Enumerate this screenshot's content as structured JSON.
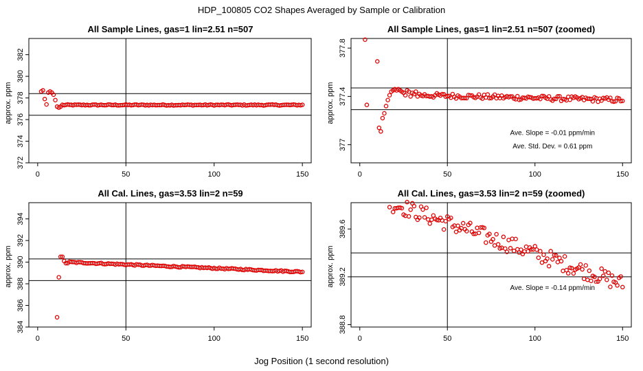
{
  "figure": {
    "title": "HDP_100805  CO2 Shapes Averaged by Sample or Calibration",
    "xlabel": "Jog Position (1 second resolution)"
  },
  "colors": {
    "points": "#e00000",
    "frame": "#000000",
    "background": "#ffffff"
  },
  "chart_data": [
    {
      "type": "scatter",
      "title": "All Sample Lines, gas=1 lin=2.51 n=507",
      "xlabel": "",
      "ylabel": "approx. ppm",
      "xlim": [
        -5,
        155
      ],
      "ylim": [
        372,
        383.5
      ],
      "xticks": [
        0,
        50,
        100,
        150
      ],
      "yticks": [
        372,
        374,
        376,
        378,
        380,
        382
      ],
      "vlines": [
        50
      ],
      "hlines": [
        376.4,
        378.4
      ],
      "annotations": [],
      "series": [
        {
          "name": "sample",
          "x": [
            2,
            3,
            4,
            5,
            6,
            7,
            8,
            9,
            10,
            11,
            12,
            13
          ],
          "y": [
            378.6,
            378.7,
            377.9,
            377.4,
            378.5,
            378.6,
            378.5,
            378.3,
            377.8,
            377.2,
            377.1,
            377.2
          ]
        },
        {
          "name": "sample_flat",
          "x_start": 14,
          "x_end": 150,
          "y_start": 377.35,
          "y_end": 377.35,
          "jitter": 0.05
        }
      ]
    },
    {
      "type": "scatter",
      "title": "All Sample Lines, gas=1 lin=2.51 n=507 (zoomed)",
      "xlabel": "",
      "ylabel": "approx. ppm",
      "xlim": [
        -5,
        155
      ],
      "ylim": [
        376.85,
        377.88
      ],
      "xticks": [
        0,
        50,
        100,
        150
      ],
      "yticks": [
        377.0,
        377.4,
        377.8
      ],
      "vlines": [
        50
      ],
      "hlines": [
        377.29,
        377.47
      ],
      "annotations": [
        {
          "text": "Ave. Slope =  -0.01  ppm/min",
          "x": 110,
          "y": 377.08
        },
        {
          "text": "Ave. Std. Dev. =  0.61  ppm",
          "x": 110,
          "y": 376.97
        }
      ],
      "series": [
        {
          "name": "sample",
          "x": [
            3,
            4,
            10,
            11,
            12,
            13,
            14,
            15,
            16,
            17,
            18,
            19,
            20,
            21,
            22,
            23,
            24,
            25,
            26,
            27,
            28,
            29,
            30,
            31,
            32,
            33,
            34
          ],
          "y": [
            377.87,
            377.33,
            377.69,
            377.14,
            377.11,
            377.22,
            377.26,
            377.32,
            377.37,
            377.41,
            377.44,
            377.45,
            377.46,
            377.45,
            377.46,
            377.45,
            377.44,
            377.43,
            377.41,
            377.45,
            377.44,
            377.4,
            377.43,
            377.42,
            377.44,
            377.4,
            377.42
          ]
        },
        {
          "name": "sample_flat",
          "x_start": 35,
          "x_end": 150,
          "y_start": 377.41,
          "y_end": 377.37,
          "jitter": 0.02
        }
      ]
    },
    {
      "type": "scatter",
      "title": "All Cal. Lines, gas=3.53 lin=2 n=59",
      "xlabel": "",
      "ylabel": "approx. ppm",
      "xlim": [
        -5,
        155
      ],
      "ylim": [
        384,
        395.5
      ],
      "xticks": [
        0,
        50,
        100,
        150
      ],
      "yticks": [
        384,
        386,
        388,
        390,
        392,
        394
      ],
      "vlines": [
        50
      ],
      "hlines": [
        388.3,
        390.3
      ],
      "annotations": [],
      "series": [
        {
          "name": "cal",
          "x": [
            11,
            12,
            13,
            14,
            15,
            16,
            17
          ],
          "y": [
            384.9,
            388.6,
            390.5,
            390.5,
            390.1,
            389.9,
            389.9
          ]
        },
        {
          "name": "cal_flat",
          "x_start": 18,
          "x_end": 150,
          "y_start": 390.0,
          "y_end": 389.1,
          "jitter": 0.06
        }
      ]
    },
    {
      "type": "scatter",
      "title": "All Cal. Lines, gas=3.53 lin=2 n=59 (zoomed)",
      "xlabel": "",
      "ylabel": "approx. ppm",
      "xlim": [
        -5,
        155
      ],
      "ylim": [
        388.78,
        389.82
      ],
      "xticks": [
        0,
        50,
        100,
        150
      ],
      "yticks": [
        388.8,
        389.2,
        389.6
      ],
      "vlines": [
        50
      ],
      "hlines": [
        389.2,
        389.4
      ],
      "annotations": [
        {
          "text": "Ave. Slope =  -0.14  ppm/min",
          "x": 110,
          "y": 389.09
        }
      ],
      "series": [
        {
          "name": "cal_zoom",
          "x_start": 17,
          "x_end": 150,
          "y_start": 389.82,
          "y_end": 389.14,
          "jitter": 0.07
        }
      ]
    }
  ]
}
